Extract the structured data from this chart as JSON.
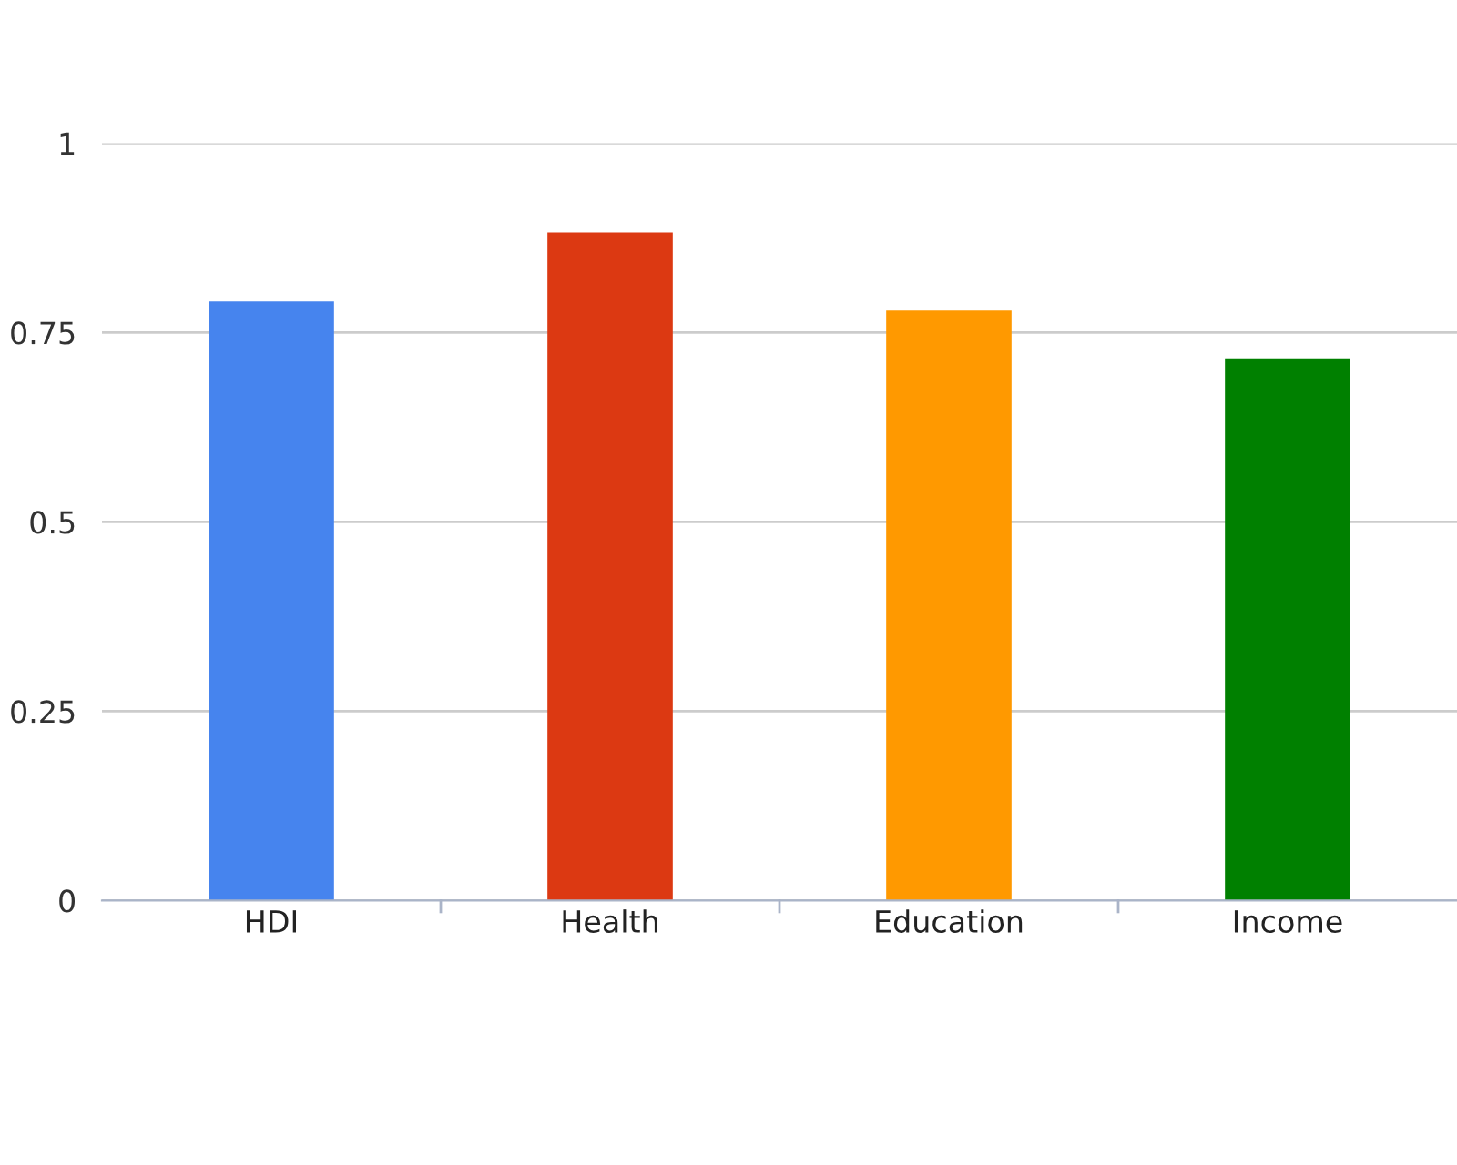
{
  "chart_data": {
    "type": "bar",
    "categories": [
      "HDI",
      "Health",
      "Education",
      "Income"
    ],
    "values": [
      0.791,
      0.882,
      0.779,
      0.716
    ],
    "colors": [
      "#4684ee",
      "#dc3912",
      "#ff9900",
      "#008000"
    ],
    "ylim": [
      0,
      1
    ],
    "yticks": [
      0,
      0.25,
      0.5,
      0.75,
      1
    ],
    "grid": "y",
    "legend": false
  }
}
